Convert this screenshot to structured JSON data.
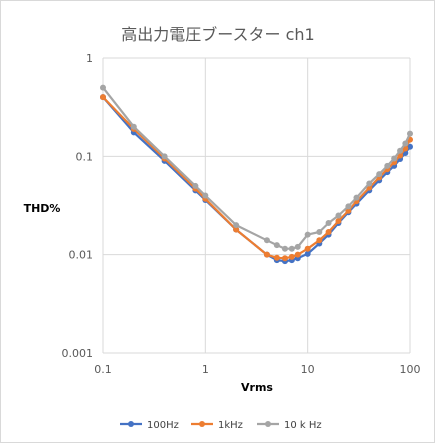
{
  "chart_data": {
    "type": "line",
    "title": "高出力電圧ブースター ch1",
    "xlabel": "Vrms",
    "ylabel": "THD%",
    "xscale": "log",
    "yscale": "log",
    "xlim": [
      0.1,
      100
    ],
    "ylim": [
      0.001,
      1
    ],
    "x_ticks": [
      "0.1",
      "1",
      "10",
      "100"
    ],
    "y_ticks": [
      "0.001",
      "0.01",
      "0.1",
      "1"
    ],
    "grid": true,
    "legend_position": "bottom",
    "series": [
      {
        "name": "100Hz",
        "color": "#4472c4",
        "x": [
          0.1,
          0.2,
          0.4,
          0.8,
          1,
          2,
          4,
          5,
          6,
          7,
          8,
          10,
          13,
          16,
          20,
          25,
          30,
          40,
          50,
          60,
          70,
          80,
          90,
          100
        ],
        "y": [
          0.4,
          0.175,
          0.09,
          0.045,
          0.036,
          0.018,
          0.01,
          0.0088,
          0.0086,
          0.0088,
          0.0092,
          0.0102,
          0.013,
          0.016,
          0.021,
          0.027,
          0.033,
          0.045,
          0.057,
          0.069,
          0.08,
          0.094,
          0.108,
          0.125
        ]
      },
      {
        "name": "1kHz",
        "color": "#ed7d31",
        "x": [
          0.1,
          0.2,
          0.4,
          0.8,
          1,
          2,
          4,
          5,
          6,
          7,
          8,
          10,
          13,
          16,
          20,
          25,
          30,
          40,
          50,
          60,
          70,
          80,
          90,
          100
        ],
        "y": [
          0.4,
          0.19,
          0.095,
          0.047,
          0.037,
          0.018,
          0.01,
          0.0093,
          0.0092,
          0.0095,
          0.01,
          0.0115,
          0.014,
          0.017,
          0.022,
          0.028,
          0.035,
          0.048,
          0.061,
          0.074,
          0.087,
          0.102,
          0.12,
          0.148
        ]
      },
      {
        "name": "10 k Hz",
        "color": "#a5a5a5",
        "x": [
          0.1,
          0.2,
          0.4,
          0.8,
          1,
          2,
          4,
          5,
          6,
          7,
          8,
          10,
          13,
          16,
          20,
          25,
          30,
          40,
          50,
          60,
          70,
          80,
          90,
          100
        ],
        "y": [
          0.5,
          0.2,
          0.1,
          0.05,
          0.04,
          0.02,
          0.014,
          0.0125,
          0.0115,
          0.0115,
          0.012,
          0.016,
          0.017,
          0.021,
          0.025,
          0.031,
          0.038,
          0.053,
          0.066,
          0.08,
          0.095,
          0.114,
          0.135,
          0.17
        ]
      }
    ]
  }
}
